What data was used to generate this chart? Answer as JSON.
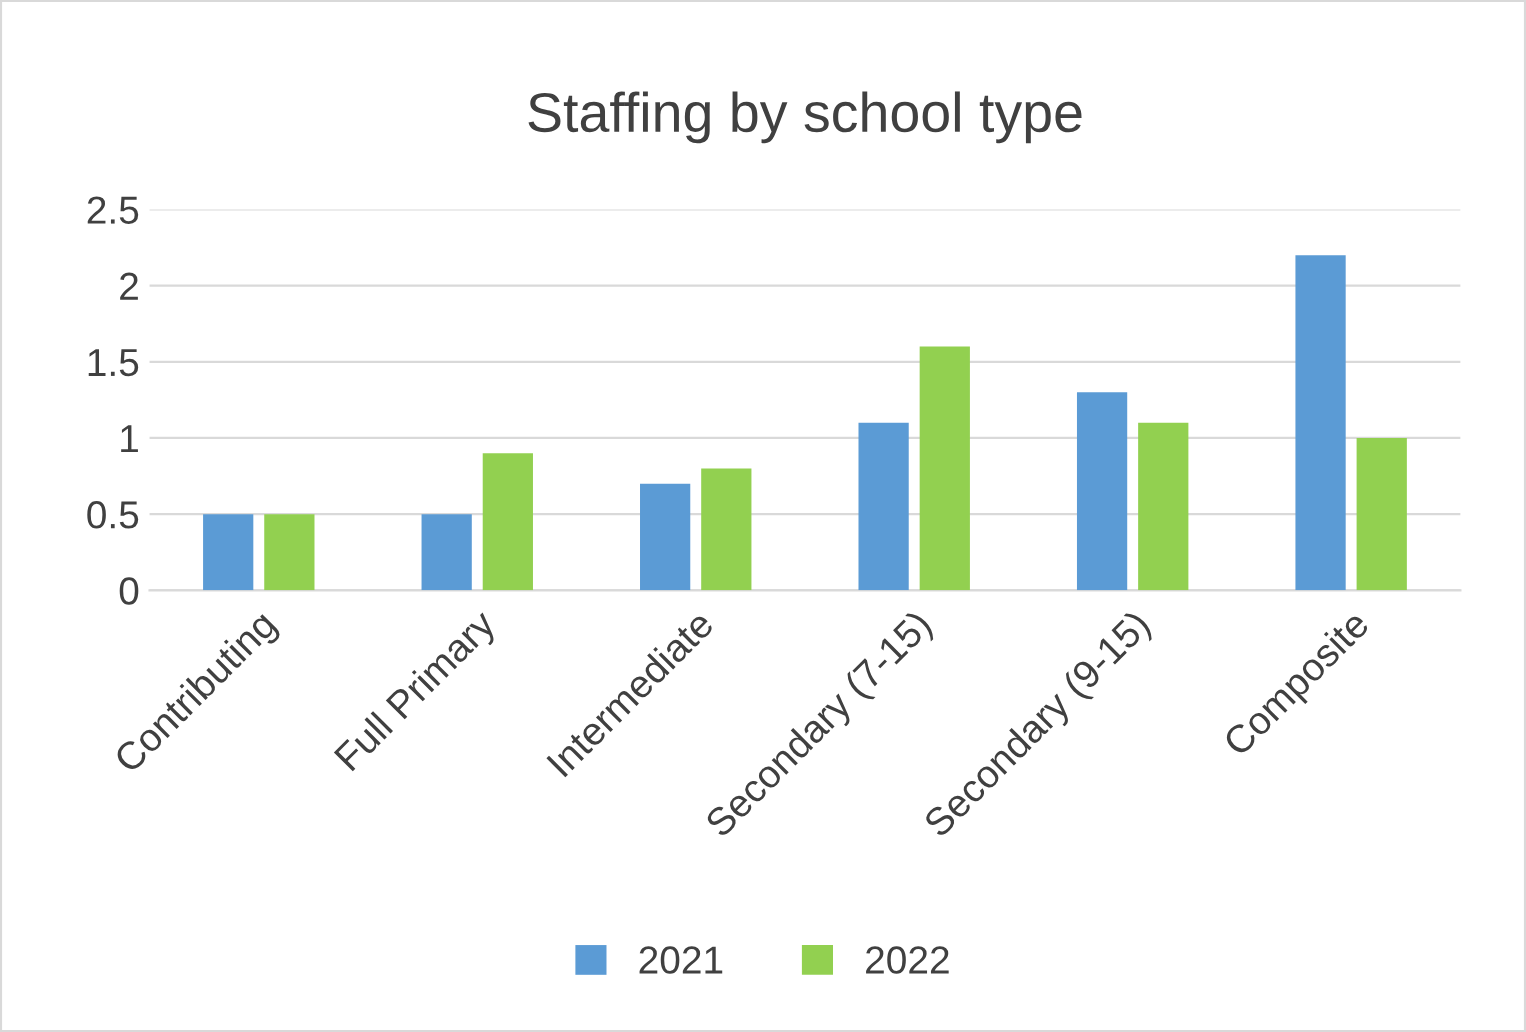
{
  "chart_data": {
    "type": "bar",
    "title": "Staffing by school type",
    "categories": [
      "Contributing",
      "Full Primary",
      "Intermediate",
      "Secondary (7-15)",
      "Secondary (9-15)",
      "Composite"
    ],
    "series": [
      {
        "name": "2021",
        "color": "#5b9bd5",
        "values": [
          0.5,
          0.5,
          0.7,
          1.1,
          1.3,
          2.2
        ]
      },
      {
        "name": "2022",
        "color": "#92d050",
        "values": [
          0.5,
          0.9,
          0.8,
          1.6,
          1.1,
          1.0
        ]
      }
    ],
    "ylim": [
      0,
      2.5
    ],
    "yticks": [
      0,
      0.5,
      1,
      1.5,
      2,
      2.5
    ],
    "grid": "y",
    "legend": "bottom"
  }
}
